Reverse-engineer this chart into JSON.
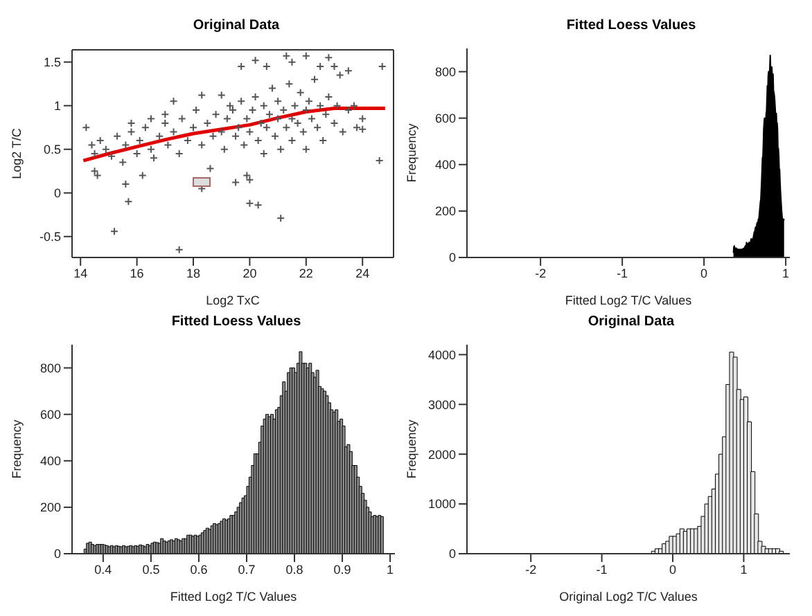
{
  "chart_data": [
    {
      "type": "scatter",
      "title": "Original Data",
      "xlabel": "Log2 TxC",
      "ylabel": "Log2 T/C",
      "xlim": [
        13.7,
        25.1
      ],
      "ylim": [
        -0.74,
        1.64
      ],
      "xticks": [
        14,
        16,
        18,
        20,
        22,
        24
      ],
      "yticks": [
        -0.5,
        0,
        0.5,
        1,
        1.5
      ],
      "series": [
        {
          "type": "scatter",
          "marker": "cross",
          "color": "#555555",
          "x": [
            14.2,
            15.2,
            15.7,
            17.5,
            18.3,
            20.0,
            20.3,
            21.1,
            24.7,
            24.6,
            24.0,
            23.8,
            23.2,
            22.8,
            22.0,
            21.3,
            20.2,
            19.7,
            20.6,
            21.5,
            22.5,
            23.5,
            23.0,
            15.6,
            14.6,
            14.5,
            16.2,
            18.6,
            19.5,
            19.9,
            20.0,
            15.8,
            16.5,
            17.0,
            17.3,
            18.3,
            19.0,
            19.3,
            14.4,
            14.5,
            14.7,
            14.9,
            15.1,
            15.3,
            15.5,
            15.6,
            15.8,
            16.0,
            16.1,
            16.3,
            16.5,
            16.6,
            16.8,
            17.0,
            17.1,
            17.3,
            17.5,
            17.6,
            17.8,
            18.0,
            18.1,
            18.3,
            18.5,
            18.7,
            18.8,
            19.0,
            19.1,
            19.2,
            19.4,
            19.5,
            19.6,
            19.7,
            19.8,
            19.9,
            20.0,
            20.1,
            20.2,
            20.3,
            20.4,
            20.5,
            20.5,
            20.6,
            20.7,
            20.8,
            20.9,
            21.0,
            21.0,
            21.1,
            21.2,
            21.3,
            21.4,
            21.5,
            21.5,
            21.6,
            21.7,
            21.8,
            21.9,
            22.0,
            22.0,
            22.1,
            22.2,
            22.3,
            22.4,
            22.5,
            22.6,
            22.7,
            22.8,
            23.0,
            23.1,
            23.3,
            23.5,
            23.7,
            24.0
          ],
          "values": [
            0.75,
            -0.44,
            -0.1,
            -0.65,
            0.05,
            -0.12,
            -0.14,
            -0.29,
            1.45,
            0.37,
            0.73,
            0.75,
            1.35,
            1.55,
            1.57,
            1.57,
            1.52,
            1.45,
            1.45,
            1.5,
            1.45,
            1.4,
            1.45,
            0.1,
            0.2,
            0.25,
            0.2,
            0.28,
            0.12,
            0.2,
            0.15,
            0.8,
            0.85,
            0.9,
            1.05,
            1.12,
            1.12,
            1.0,
            0.55,
            0.45,
            0.6,
            0.5,
            0.42,
            0.65,
            0.35,
            0.55,
            0.7,
            0.45,
            0.6,
            0.75,
            0.5,
            0.4,
            0.65,
            0.8,
            0.55,
            0.7,
            0.45,
            0.85,
            0.6,
            0.75,
            0.95,
            0.55,
            0.8,
            0.65,
            0.9,
            0.7,
            0.5,
            0.85,
            0.95,
            0.65,
            0.75,
            1.05,
            0.55,
            0.85,
            0.7,
            0.95,
            1.1,
            0.6,
            0.8,
            0.45,
            1.0,
            0.75,
            0.9,
            1.2,
            0.65,
            0.85,
            1.05,
            0.5,
            0.95,
            0.75,
            1.25,
            0.85,
            0.6,
            1.0,
            0.8,
            1.15,
            0.7,
            0.95,
            0.5,
            1.05,
            0.85,
            1.3,
            0.75,
            1.0,
            0.6,
            0.9,
            1.1,
            0.8,
            1.0,
            0.7,
            0.95,
            1.0,
            0.85
          ]
        },
        {
          "type": "line",
          "marker": "none",
          "color": "#e00000",
          "x": [
            14.1,
            15,
            16,
            17,
            18,
            19,
            20,
            21,
            22,
            23,
            24,
            24.8
          ],
          "values": [
            0.37,
            0.45,
            0.53,
            0.61,
            0.68,
            0.73,
            0.78,
            0.86,
            0.93,
            0.97,
            0.97,
            0.97
          ]
        }
      ]
    },
    {
      "type": "area",
      "title": "Fitted Loess Values",
      "xlabel": "Fitted Log2 T/C Values",
      "ylabel": "Frequency",
      "color": "#000000",
      "xlim": [
        -2.9,
        1.05
      ],
      "ylim": [
        0,
        900
      ],
      "xticks": [
        -2,
        -1,
        0,
        1
      ],
      "yticks": [
        0,
        200,
        400,
        600,
        800
      ],
      "x": [
        0.36,
        0.365,
        0.37,
        0.375,
        0.38,
        0.385,
        0.39,
        0.395,
        0.4,
        0.405,
        0.41,
        0.415,
        0.42,
        0.425,
        0.43,
        0.435,
        0.44,
        0.445,
        0.45,
        0.455,
        0.46,
        0.465,
        0.47,
        0.475,
        0.48,
        0.485,
        0.49,
        0.495,
        0.5,
        0.505,
        0.51,
        0.515,
        0.52,
        0.525,
        0.53,
        0.535,
        0.54,
        0.545,
        0.55,
        0.555,
        0.56,
        0.565,
        0.57,
        0.575,
        0.58,
        0.585,
        0.59,
        0.595,
        0.6,
        0.605,
        0.61,
        0.615,
        0.62,
        0.625,
        0.63,
        0.635,
        0.64,
        0.645,
        0.65,
        0.655,
        0.66,
        0.665,
        0.67,
        0.675,
        0.68,
        0.685,
        0.69,
        0.695,
        0.7,
        0.705,
        0.71,
        0.715,
        0.72,
        0.725,
        0.73,
        0.735,
        0.74,
        0.745,
        0.75,
        0.755,
        0.76,
        0.765,
        0.77,
        0.775,
        0.78,
        0.785,
        0.79,
        0.795,
        0.8,
        0.805,
        0.81,
        0.815,
        0.82,
        0.825,
        0.83,
        0.835,
        0.84,
        0.845,
        0.85,
        0.855,
        0.86,
        0.865,
        0.87,
        0.875,
        0.88,
        0.885,
        0.89,
        0.895,
        0.9,
        0.905,
        0.91,
        0.915,
        0.92,
        0.925,
        0.93,
        0.935,
        0.94,
        0.945,
        0.95,
        0.955,
        0.96,
        0.965,
        0.97,
        0.975,
        0.98
      ],
      "values": [
        20,
        45,
        50,
        40,
        35,
        40,
        40,
        40,
        38,
        35,
        30,
        35,
        30,
        35,
        32,
        30,
        35,
        30,
        32,
        35,
        30,
        35,
        32,
        38,
        35,
        30,
        40,
        35,
        45,
        50,
        48,
        45,
        65,
        55,
        50,
        55,
        60,
        55,
        65,
        60,
        55,
        65,
        65,
        80,
        80,
        75,
        80,
        75,
        80,
        90,
        100,
        110,
        105,
        120,
        130,
        125,
        130,
        140,
        150,
        145,
        150,
        165,
        165,
        180,
        200,
        220,
        240,
        250,
        290,
        330,
        380,
        430,
        430,
        480,
        550,
        580,
        600,
        590,
        600,
        580,
        620,
        630,
        680,
        740,
        700,
        780,
        800,
        800,
        780,
        820,
        870,
        820,
        820,
        800,
        820,
        780,
        760,
        790,
        720,
        710,
        700,
        680,
        650,
        620,
        610,
        620,
        570,
        580,
        550,
        460,
        470,
        440,
        380,
        380,
        330,
        290,
        260,
        230,
        200,
        180,
        160,
        165,
        160,
        165,
        160
      ]
    },
    {
      "type": "histogram",
      "title": "Fitted Loess Values",
      "xlabel": "Fitted Log2 T/C Values",
      "ylabel": "Frequency",
      "color": "#8c8c8c",
      "xlim": [
        0.335,
        1.01
      ],
      "ylim": [
        0,
        900
      ],
      "xticks": [
        0.4,
        0.5,
        0.6,
        0.7,
        0.8,
        0.9,
        1.0
      ],
      "yticks": [
        0,
        200,
        400,
        600,
        800
      ],
      "bins": [
        0.36,
        0.365,
        0.37,
        0.375,
        0.38,
        0.385,
        0.39,
        0.395,
        0.4,
        0.405,
        0.41,
        0.415,
        0.42,
        0.425,
        0.43,
        0.435,
        0.44,
        0.445,
        0.45,
        0.455,
        0.46,
        0.465,
        0.47,
        0.475,
        0.48,
        0.485,
        0.49,
        0.495,
        0.5,
        0.505,
        0.51,
        0.515,
        0.52,
        0.525,
        0.53,
        0.535,
        0.54,
        0.545,
        0.55,
        0.555,
        0.56,
        0.565,
        0.57,
        0.575,
        0.58,
        0.585,
        0.59,
        0.595,
        0.6,
        0.605,
        0.61,
        0.615,
        0.62,
        0.625,
        0.63,
        0.635,
        0.64,
        0.645,
        0.65,
        0.655,
        0.66,
        0.665,
        0.67,
        0.675,
        0.68,
        0.685,
        0.69,
        0.695,
        0.7,
        0.705,
        0.71,
        0.715,
        0.72,
        0.725,
        0.73,
        0.735,
        0.74,
        0.745,
        0.75,
        0.755,
        0.76,
        0.765,
        0.77,
        0.775,
        0.78,
        0.785,
        0.79,
        0.795,
        0.8,
        0.805,
        0.81,
        0.815,
        0.82,
        0.825,
        0.83,
        0.835,
        0.84,
        0.845,
        0.85,
        0.855,
        0.86,
        0.865,
        0.87,
        0.875,
        0.88,
        0.885,
        0.89,
        0.895,
        0.9,
        0.905,
        0.91,
        0.915,
        0.92,
        0.925,
        0.93,
        0.935,
        0.94,
        0.945,
        0.95,
        0.955,
        0.96,
        0.965,
        0.97,
        0.975,
        0.98,
        0.985
      ],
      "values": [
        20,
        45,
        50,
        40,
        35,
        40,
        40,
        40,
        38,
        35,
        30,
        35,
        30,
        35,
        32,
        30,
        35,
        30,
        32,
        35,
        30,
        35,
        32,
        38,
        35,
        30,
        40,
        35,
        45,
        50,
        48,
        45,
        65,
        55,
        50,
        55,
        60,
        55,
        65,
        60,
        55,
        65,
        65,
        80,
        80,
        75,
        80,
        75,
        80,
        90,
        100,
        110,
        105,
        120,
        130,
        125,
        130,
        140,
        150,
        145,
        150,
        165,
        165,
        180,
        200,
        220,
        240,
        250,
        290,
        330,
        380,
        430,
        430,
        480,
        550,
        580,
        600,
        590,
        600,
        580,
        620,
        630,
        680,
        740,
        700,
        780,
        800,
        800,
        780,
        820,
        870,
        820,
        820,
        800,
        820,
        780,
        760,
        790,
        720,
        710,
        700,
        680,
        650,
        620,
        610,
        620,
        570,
        580,
        550,
        460,
        470,
        440,
        380,
        380,
        330,
        290,
        260,
        230,
        200,
        180,
        160,
        165,
        160,
        165,
        160
      ]
    },
    {
      "type": "histogram",
      "title": "Original Data",
      "xlabel": "Original Log2 T/C Values",
      "ylabel": "Frequency",
      "color": "#e6e6e6",
      "xlim": [
        -2.9,
        1.65
      ],
      "ylim": [
        0,
        4200
      ],
      "xticks": [
        -2,
        -1,
        0,
        1
      ],
      "yticks": [
        0,
        1000,
        2000,
        3000,
        4000
      ],
      "bins": [
        -2.75,
        -2.7,
        -2.65,
        -2.6,
        -2.55,
        -2.5,
        -2.45,
        -2.4,
        -2.35,
        -2.3,
        -2.25,
        -2.2,
        -2.15,
        -2.1,
        -2.05,
        -2,
        -1.95,
        -1.9,
        -1.85,
        -1.8,
        -1.75,
        -1.7,
        -1.65,
        -1.6,
        -1.55,
        -1.5,
        -1.45,
        -1.4,
        -1.35,
        -1.3,
        -1.25,
        -1.2,
        -1.15,
        -1.1,
        -1.05,
        -1,
        -0.95,
        -0.9,
        -0.85,
        -0.8,
        -0.75,
        -0.7,
        -0.65,
        -0.6,
        -0.55,
        -0.5,
        -0.45,
        -0.4,
        -0.35,
        -0.3,
        -0.25,
        -0.2,
        -0.15,
        -0.1,
        -0.05,
        0,
        0.05,
        0.1,
        0.15,
        0.2,
        0.25,
        0.3,
        0.35,
        0.4,
        0.45,
        0.5,
        0.55,
        0.6,
        0.65,
        0.7,
        0.75,
        0.8,
        0.85,
        0.9,
        0.95,
        1,
        1.05,
        1.1,
        1.15,
        1.2,
        1.25,
        1.3,
        1.35,
        1.4,
        1.45,
        1.5,
        1.55
      ],
      "values": [
        0,
        0,
        0,
        0,
        0,
        0,
        0,
        0,
        0,
        0,
        0,
        0,
        0,
        0,
        0,
        0,
        0,
        0,
        0,
        0,
        0,
        0,
        0,
        0,
        0,
        0,
        0,
        0,
        0,
        0,
        0,
        0,
        0,
        0,
        0,
        0,
        0,
        0,
        0,
        0,
        0,
        0,
        0,
        0,
        0,
        0,
        0,
        0,
        0,
        50,
        100,
        100,
        200,
        250,
        350,
        350,
        400,
        500,
        450,
        500,
        500,
        500,
        550,
        750,
        1000,
        1150,
        1300,
        1600,
        2000,
        2350,
        3400,
        4050,
        3950,
        3300,
        3100,
        3150,
        2650,
        1650,
        800,
        250,
        150,
        100,
        100,
        100,
        100,
        50
      ]
    }
  ]
}
